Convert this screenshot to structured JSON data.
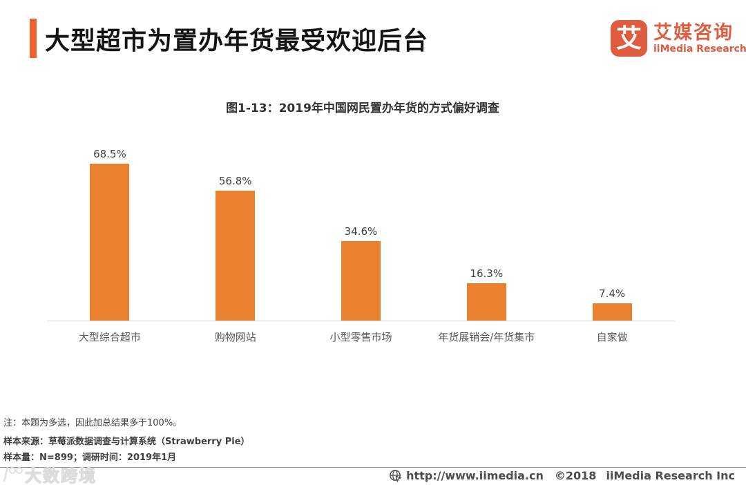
{
  "header": {
    "title": "大型超市为置办年货最受欢迎后台",
    "logo": {
      "glyph": "艾",
      "brand_cn": "艾媒咨询",
      "brand_en": "iiMedia Research"
    }
  },
  "chart_data": {
    "type": "bar",
    "title": "图1-13：2019年中国网民置办年货的方式偏好调查",
    "categories": [
      "大型综合超市",
      "购物网站",
      "小型零售市场",
      "年货展销会/年货集市",
      "自家做"
    ],
    "values": [
      68.5,
      56.8,
      34.6,
      16.3,
      7.4
    ],
    "value_labels": [
      "68.5%",
      "56.8%",
      "34.6%",
      "16.3%",
      "7.4%"
    ],
    "xlabel": "",
    "ylabel": "",
    "ylim": [
      0,
      75
    ],
    "grid": false,
    "legend": null,
    "axis_line_visible": true,
    "data_labels_position": "above-bar",
    "bar_color": "#E8802E"
  },
  "notes": {
    "note1": "注：本题为多选，因此加总结果多于100%。",
    "note2": "样本来源：草莓派数据调查与计算系统（Strawberry Pie）",
    "note3": "样本量：N=899；调研时间：2019年1月"
  },
  "footer": {
    "watermark": "大数跨境",
    "url": "http://www.iimedia.cn",
    "copyright": "©2018",
    "company": "iiMedia Research Inc"
  },
  "colors": {
    "bar_orange": "#E8802E",
    "title_marker_orange": "#F0632E",
    "brand_red_orange": "#DE5C3F",
    "axis_line_gray": "#D9D9D9",
    "footer_text_gray": "#4d4d4d"
  }
}
